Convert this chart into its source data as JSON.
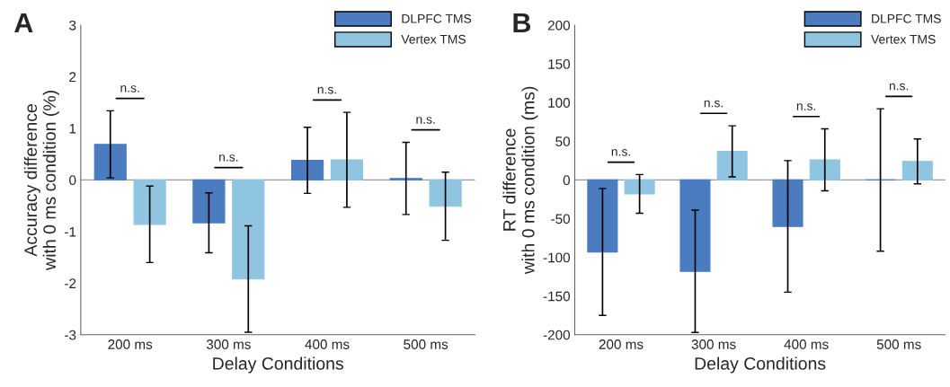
{
  "chart_data": [
    {
      "type": "bar",
      "title": "A",
      "xlabel": "Delay Conditions",
      "ylabel": "Accuracy difference\nwith 0 ms condition (%)",
      "categories": [
        "200 ms",
        "300 ms",
        "400 ms",
        "500 ms"
      ],
      "series": [
        {
          "name": "DLPFC TMS",
          "color": "#4a7cbf",
          "values": [
            0.69,
            -0.83,
            0.38,
            0.03
          ],
          "errors": [
            0.65,
            0.58,
            0.64,
            0.7
          ]
        },
        {
          "name": "Vertex TMS",
          "color": "#8fc5e0",
          "values": [
            -0.86,
            -1.92,
            0.39,
            -0.51
          ],
          "errors": [
            0.74,
            1.03,
            0.92,
            0.66
          ]
        }
      ],
      "ylim": [
        -3,
        3
      ],
      "yticks": [
        -3,
        -2,
        -1,
        0,
        1,
        2,
        3
      ],
      "grid": false,
      "legend": "top right",
      "ref_lines": [
        {
          "axis": "y",
          "value": 0,
          "color": "#999999"
        }
      ],
      "annotations": [
        "n.s.",
        "n.s.",
        "n.s.",
        "n.s."
      ]
    },
    {
      "type": "bar",
      "title": "B",
      "xlabel": "Delay Conditions",
      "ylabel": "RT difference\nwith 0 ms condition (ms)",
      "categories": [
        "200 ms",
        "300 ms",
        "400 ms",
        "500 ms"
      ],
      "series": [
        {
          "name": "DLPFC TMS",
          "color": "#4a7cbf",
          "values": [
            -93,
            -118,
            -60,
            0
          ],
          "errors": [
            82,
            79,
            85,
            92
          ]
        },
        {
          "name": "Vertex TMS",
          "color": "#8fc5e0",
          "values": [
            -18,
            37,
            26,
            24
          ],
          "errors": [
            25,
            33,
            40,
            29
          ]
        }
      ],
      "ylim": [
        -200,
        200
      ],
      "yticks": [
        -200,
        -150,
        -100,
        -50,
        0,
        50,
        100,
        150,
        200
      ],
      "grid": false,
      "legend": "top right",
      "ref_lines": [
        {
          "axis": "y",
          "value": 0,
          "color": "#999999"
        }
      ],
      "annotations": [
        "n.s.",
        "n.s.",
        "n.s.",
        "n.s."
      ]
    }
  ]
}
